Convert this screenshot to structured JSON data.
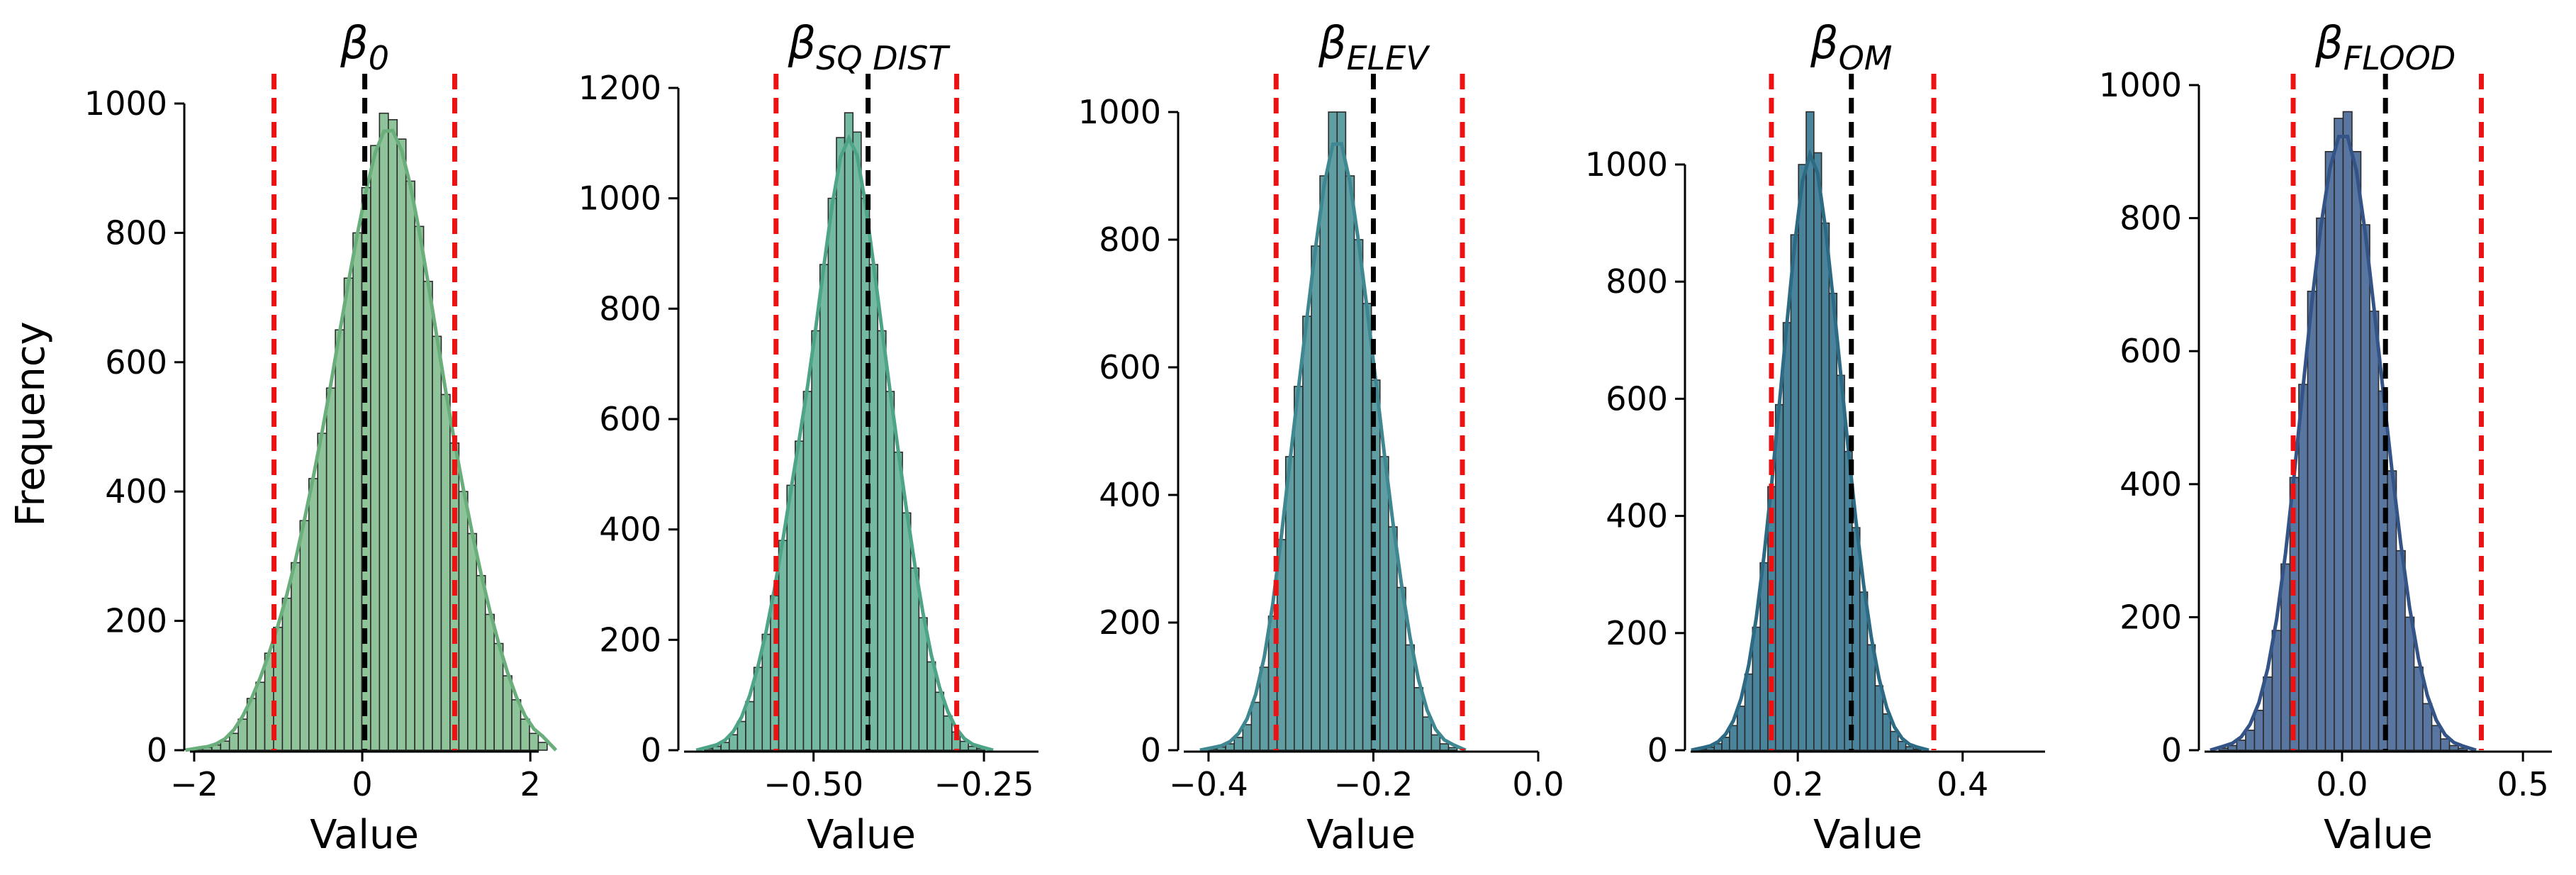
{
  "figure": {
    "ylabel": "Frequency",
    "mean_line_color": "#000000",
    "ci_line_color": "#ee1111"
  },
  "chart_data": [
    {
      "type": "histogram",
      "title": "β",
      "title_subscript": "0",
      "xlabel": "Value",
      "ylabel": "Frequency",
      "xlim": [
        -2.05,
        2.1
      ],
      "ylim": [
        0,
        1000
      ],
      "xticks": [
        -2,
        0,
        2
      ],
      "xtick_labels": [
        "−2",
        "0",
        "2"
      ],
      "yticks": [
        0,
        200,
        400,
        600,
        800,
        1000
      ],
      "ytick_labels": [
        "0",
        "200",
        "400",
        "600",
        "800",
        "1000"
      ],
      "bin_start": -2.0,
      "bin_width": 0.105,
      "counts": [
        2,
        4,
        8,
        14,
        26,
        48,
        80,
        105,
        150,
        190,
        235,
        290,
        355,
        420,
        490,
        560,
        650,
        730,
        800,
        870,
        935,
        985,
        975,
        945,
        880,
        810,
        725,
        640,
        550,
        475,
        400,
        335,
        270,
        210,
        165,
        115,
        78,
        48,
        26,
        12
      ],
      "mean": 0.03,
      "ci": [
        -1.05,
        1.1
      ],
      "bar_color": "#8fc49a",
      "kde_color": "#6aae7c"
    },
    {
      "type": "histogram",
      "title": "β",
      "title_subscript": "SQ DIST",
      "xlabel": "Value",
      "ylabel": "",
      "xlim": [
        -0.69,
        -0.17
      ],
      "ylim": [
        0,
        1200
      ],
      "xticks": [
        -0.5,
        -0.25
      ],
      "xtick_labels": [
        "−0.50",
        "−0.25"
      ],
      "yticks": [
        0,
        200,
        400,
        600,
        800,
        1000,
        1200
      ],
      "ytick_labels": [
        "0",
        "200",
        "400",
        "600",
        "800",
        "1000",
        "1200"
      ],
      "bin_start": -0.66,
      "bin_width": 0.0121,
      "counts": [
        3,
        7,
        14,
        28,
        52,
        88,
        150,
        210,
        280,
        380,
        480,
        560,
        650,
        760,
        880,
        1000,
        1110,
        1155,
        1120,
        1000,
        880,
        760,
        650,
        540,
        430,
        330,
        240,
        160,
        105,
        62,
        33,
        16,
        7,
        3
      ],
      "mean": -0.42,
      "ci": [
        -0.555,
        -0.29
      ],
      "bar_color": "#74b9a2",
      "kde_color": "#4ea487"
    },
    {
      "type": "histogram",
      "title": "β",
      "title_subscript": "ELEV",
      "xlabel": "Value",
      "ylabel": "",
      "xlim": [
        -0.43,
        0.0
      ],
      "ylim": [
        0,
        1000
      ],
      "xticks": [
        -0.4,
        -0.2,
        0.0
      ],
      "xtick_labels": [
        "−0.4",
        "−0.2",
        "0.0"
      ],
      "yticks": [
        0,
        200,
        400,
        600,
        800,
        1000
      ],
      "ytick_labels": [
        "0",
        "200",
        "400",
        "600",
        "800",
        "1000"
      ],
      "bin_start": -0.4,
      "bin_width": 0.0104,
      "counts": [
        2,
        5,
        10,
        20,
        40,
        75,
        130,
        210,
        330,
        460,
        570,
        680,
        790,
        900,
        1000,
        1000,
        900,
        800,
        700,
        580,
        460,
        350,
        255,
        165,
        98,
        52,
        24,
        10,
        4
      ],
      "mean": -0.2,
      "ci": [
        -0.318,
        -0.092
      ],
      "bar_color": "#5f9ea3",
      "kde_color": "#3f8891"
    },
    {
      "type": "histogram",
      "title": "β",
      "title_subscript": "OM",
      "xlabel": "Value",
      "ylabel": "",
      "xlim": [
        0.07,
        0.5
      ],
      "ylim": [
        0,
        1000
      ],
      "xticks": [
        0.2,
        0.4
      ],
      "xtick_labels": [
        "0.2",
        "0.4"
      ],
      "yticks": [
        0,
        200,
        400,
        600,
        800,
        1000
      ],
      "ytick_labels": [
        "0",
        "200",
        "400",
        "600",
        "800",
        "1000"
      ],
      "bin_start": 0.08,
      "bin_width": 0.0093,
      "counts": [
        2,
        5,
        11,
        22,
        42,
        75,
        130,
        210,
        320,
        450,
        590,
        730,
        880,
        1000,
        1090,
        1020,
        900,
        780,
        640,
        510,
        380,
        270,
        180,
        110,
        62,
        32,
        15,
        6,
        2
      ],
      "mean": 0.265,
      "ci": [
        0.168,
        0.365
      ],
      "bar_color": "#4a849c",
      "kde_color": "#2d6b84"
    },
    {
      "type": "histogram",
      "title": "β",
      "title_subscript": "FLOOD",
      "xlabel": "Value",
      "ylabel": "",
      "xlim": [
        -0.38,
        0.58
      ],
      "ylim": [
        0,
        1000
      ],
      "xticks": [
        0.0,
        0.5
      ],
      "xtick_labels": [
        "0.0",
        "0.5"
      ],
      "yticks": [
        0,
        200,
        400,
        600,
        800,
        1000
      ],
      "ytick_labels": [
        "0",
        "200",
        "400",
        "600",
        "800",
        "1000"
      ],
      "bin_start": -0.34,
      "bin_width": 0.0245,
      "counts": [
        3,
        7,
        15,
        30,
        60,
        110,
        180,
        280,
        410,
        550,
        690,
        800,
        900,
        950,
        960,
        900,
        790,
        660,
        540,
        420,
        300,
        200,
        125,
        70,
        37,
        17,
        7,
        3
      ],
      "mean": 0.12,
      "ci": [
        -0.135,
        0.385
      ],
      "bar_color": "#5876a0",
      "kde_color": "#345488"
    }
  ]
}
